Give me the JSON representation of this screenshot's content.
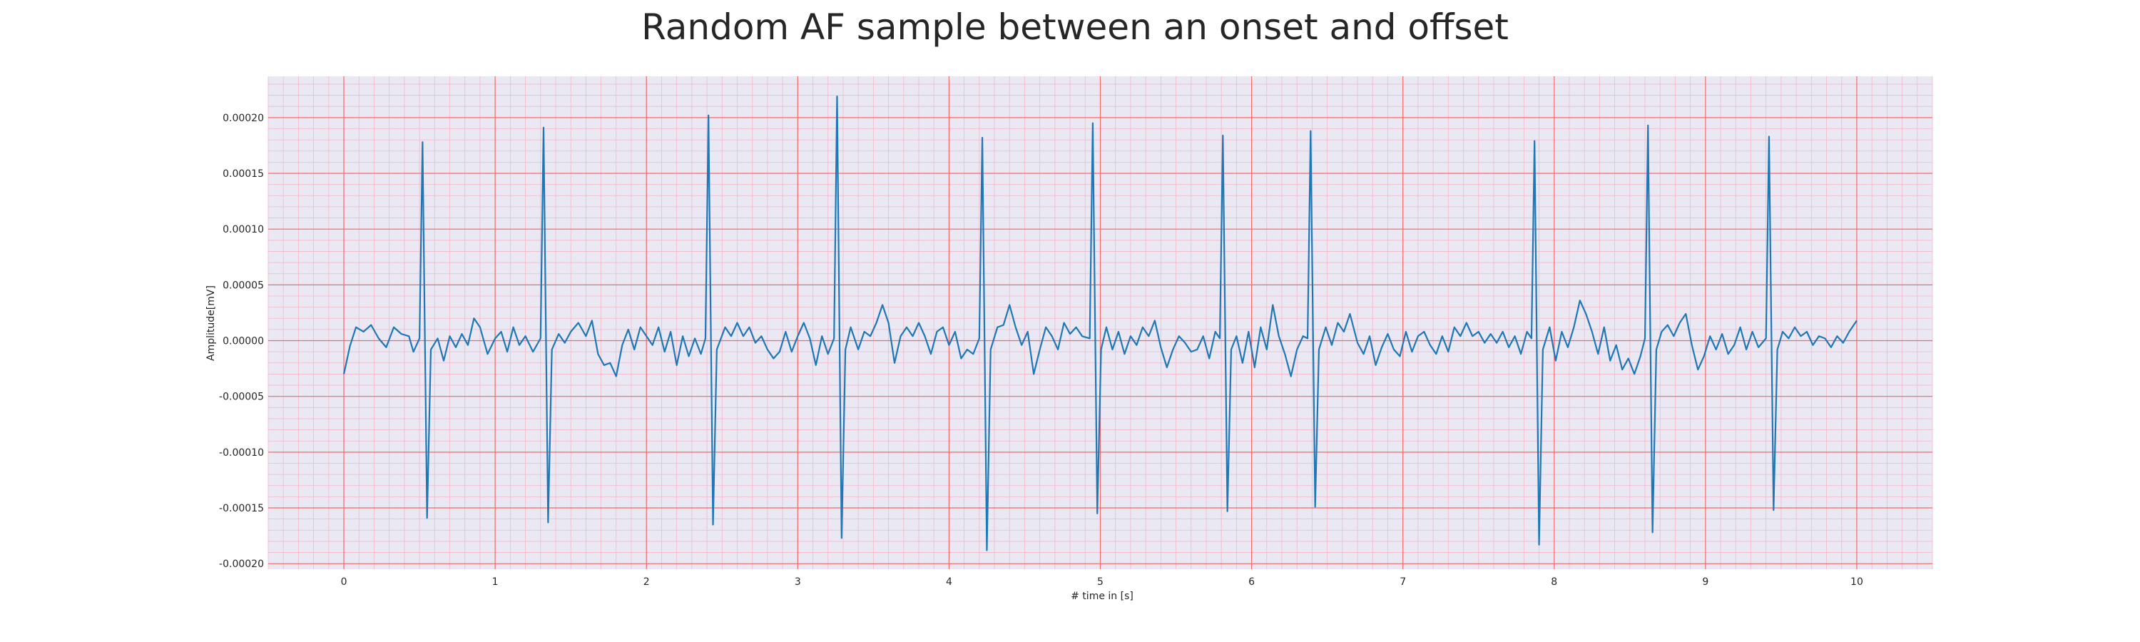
{
  "chart_data": {
    "type": "line",
    "title": "Random AF sample between an onset and offset",
    "xlabel": "# time in [s]",
    "ylabel": "Amplitude[mV]",
    "xlim": [
      -0.5,
      10.5
    ],
    "ylim": [
      -0.000205,
      0.000237
    ],
    "xticks": [
      0,
      1,
      2,
      3,
      4,
      5,
      6,
      7,
      8,
      9,
      10
    ],
    "xtick_labels": [
      "0",
      "1",
      "2",
      "3",
      "4",
      "5",
      "6",
      "7",
      "8",
      "9",
      "10"
    ],
    "yticks": [
      -0.0002,
      -0.00015,
      -0.0001,
      -5e-05,
      0,
      5e-05,
      0.0001,
      0.00015,
      0.0002
    ],
    "ytick_labels": [
      "-0.00020",
      "-0.00015",
      "-0.00010",
      "-0.00005",
      "0.00000",
      "0.00005",
      "0.00010",
      "0.00015",
      "0.00020"
    ],
    "grid": true,
    "colors": {
      "line": "#1f77b4",
      "plot_background": "#eae8f3",
      "major_grid": "#f26a6a",
      "minor_grid": "#f3b8c9"
    },
    "series": [
      {
        "beats": [
          {
            "t": 0.52,
            "peak": 0.000178,
            "trough": -0.000159
          },
          {
            "t": 1.32,
            "peak": 0.000191,
            "trough": -0.000163
          },
          {
            "t": 2.41,
            "peak": 0.000202,
            "trough": -0.000165
          },
          {
            "t": 3.26,
            "peak": 0.000219,
            "trough": -0.000177
          },
          {
            "t": 4.22,
            "peak": 0.000182,
            "trough": -0.000188
          },
          {
            "t": 4.95,
            "peak": 0.000195,
            "trough": -0.000155
          },
          {
            "t": 5.81,
            "peak": 0.000184,
            "trough": -0.000153
          },
          {
            "t": 6.39,
            "peak": 0.000188,
            "trough": -0.000149
          },
          {
            "t": 7.87,
            "peak": 0.000179,
            "trough": -0.000183
          },
          {
            "t": 8.62,
            "peak": 0.000193,
            "trough": -0.000172
          },
          {
            "t": 9.42,
            "peak": 0.000183,
            "trough": -0.000152
          }
        ],
        "baseline": [
          [
            0.0,
            -3e-05
          ],
          [
            0.04,
            -5e-06
          ],
          [
            0.08,
            1.2e-05
          ],
          [
            0.13,
            8e-06
          ],
          [
            0.18,
            1.4e-05
          ],
          [
            0.23,
            2e-06
          ],
          [
            0.28,
            -6e-06
          ],
          [
            0.33,
            1.2e-05
          ],
          [
            0.38,
            6e-06
          ],
          [
            0.43,
            4e-06
          ],
          [
            0.46,
            -1e-05
          ],
          [
            0.58,
            -1.2e-05
          ],
          [
            0.62,
            2e-06
          ],
          [
            0.66,
            -1.8e-05
          ],
          [
            0.7,
            4e-06
          ],
          [
            0.74,
            -6e-06
          ],
          [
            0.78,
            6e-06
          ],
          [
            0.82,
            -4e-06
          ],
          [
            0.86,
            2e-05
          ],
          [
            0.9,
            1.2e-05
          ],
          [
            0.95,
            -1.2e-05
          ],
          [
            1.0,
            2e-06
          ],
          [
            1.04,
            8e-06
          ],
          [
            1.08,
            -1e-05
          ],
          [
            1.12,
            1.2e-05
          ],
          [
            1.16,
            -4e-06
          ],
          [
            1.2,
            4e-06
          ],
          [
            1.25,
            -1e-05
          ],
          [
            1.38,
            2e-06
          ],
          [
            1.42,
            6e-06
          ],
          [
            1.46,
            -2e-06
          ],
          [
            1.5,
            8e-06
          ],
          [
            1.55,
            1.6e-05
          ],
          [
            1.6,
            4e-06
          ],
          [
            1.64,
            1.8e-05
          ],
          [
            1.68,
            -1.2e-05
          ],
          [
            1.72,
            -2.2e-05
          ],
          [
            1.76,
            -2e-05
          ],
          [
            1.8,
            -3.2e-05
          ],
          [
            1.84,
            -4e-06
          ],
          [
            1.88,
            1e-05
          ],
          [
            1.92,
            -8e-06
          ],
          [
            1.96,
            1.2e-05
          ],
          [
            2.0,
            4e-06
          ],
          [
            2.04,
            -4e-06
          ],
          [
            2.08,
            1.2e-05
          ],
          [
            2.12,
            -1e-05
          ],
          [
            2.16,
            8e-06
          ],
          [
            2.2,
            -2.2e-05
          ],
          [
            2.24,
            4e-06
          ],
          [
            2.28,
            -1.4e-05
          ],
          [
            2.32,
            2e-06
          ],
          [
            2.36,
            -1.2e-05
          ],
          [
            2.47,
            -2e-05
          ],
          [
            2.52,
            1.2e-05
          ],
          [
            2.56,
            4e-06
          ],
          [
            2.6,
            1.6e-05
          ],
          [
            2.64,
            4e-06
          ],
          [
            2.68,
            1.2e-05
          ],
          [
            2.72,
            -2e-06
          ],
          [
            2.76,
            4e-06
          ],
          [
            2.8,
            -8e-06
          ],
          [
            2.84,
            -1.6e-05
          ],
          [
            2.88,
            -1e-05
          ],
          [
            2.92,
            8e-06
          ],
          [
            2.96,
            -1e-05
          ],
          [
            3.0,
            4e-06
          ],
          [
            3.04,
            1.6e-05
          ],
          [
            3.08,
            2e-06
          ],
          [
            3.12,
            -2.2e-05
          ],
          [
            3.16,
            4e-06
          ],
          [
            3.2,
            -1.2e-05
          ],
          [
            3.31,
            -2e-05
          ],
          [
            3.35,
            1.2e-05
          ],
          [
            3.4,
            -8e-06
          ],
          [
            3.44,
            8e-06
          ],
          [
            3.48,
            4e-06
          ],
          [
            3.52,
            1.6e-05
          ],
          [
            3.56,
            3.2e-05
          ],
          [
            3.6,
            1.6e-05
          ],
          [
            3.64,
            -2e-05
          ],
          [
            3.68,
            4e-06
          ],
          [
            3.72,
            1.2e-05
          ],
          [
            3.76,
            4e-06
          ],
          [
            3.8,
            1.6e-05
          ],
          [
            3.84,
            4e-06
          ],
          [
            3.88,
            -1.2e-05
          ],
          [
            3.92,
            8e-06
          ],
          [
            3.96,
            1.2e-05
          ],
          [
            4.0,
            -4e-06
          ],
          [
            4.04,
            8e-06
          ],
          [
            4.08,
            -1.6e-05
          ],
          [
            4.12,
            -8e-06
          ],
          [
            4.16,
            -1.2e-05
          ],
          [
            4.28,
            -1.6e-05
          ],
          [
            4.32,
            1.2e-05
          ],
          [
            4.36,
            1.4e-05
          ],
          [
            4.4,
            3.2e-05
          ],
          [
            4.44,
            1.2e-05
          ],
          [
            4.48,
            -4e-06
          ],
          [
            4.52,
            8e-06
          ],
          [
            4.56,
            -3e-05
          ],
          [
            4.6,
            -8e-06
          ],
          [
            4.64,
            1.2e-05
          ],
          [
            4.68,
            4e-06
          ],
          [
            4.72,
            -8e-06
          ],
          [
            4.76,
            1.6e-05
          ],
          [
            4.8,
            6e-06
          ],
          [
            4.84,
            1.2e-05
          ],
          [
            4.88,
            4e-06
          ],
          [
            5.0,
            -8e-06
          ],
          [
            5.04,
            1.2e-05
          ],
          [
            5.08,
            -8e-06
          ],
          [
            5.12,
            8e-06
          ],
          [
            5.16,
            -1.2e-05
          ],
          [
            5.2,
            4e-06
          ],
          [
            5.24,
            -4e-06
          ],
          [
            5.28,
            1.2e-05
          ],
          [
            5.32,
            4e-06
          ],
          [
            5.36,
            1.8e-05
          ],
          [
            5.4,
            -6e-06
          ],
          [
            5.44,
            -2.4e-05
          ],
          [
            5.48,
            -8e-06
          ],
          [
            5.52,
            4e-06
          ],
          [
            5.56,
            -2e-06
          ],
          [
            5.6,
            -1e-05
          ],
          [
            5.64,
            -8e-06
          ],
          [
            5.68,
            4e-06
          ],
          [
            5.72,
            -1.6e-05
          ],
          [
            5.76,
            8e-06
          ],
          [
            5.86,
            2e-06
          ],
          [
            5.9,
            4e-06
          ],
          [
            5.94,
            -2e-05
          ],
          [
            5.98,
            8e-06
          ],
          [
            6.02,
            -2.4e-05
          ],
          [
            6.06,
            1.2e-05
          ],
          [
            6.1,
            -8e-06
          ],
          [
            6.14,
            3.2e-05
          ],
          [
            6.18,
            4e-06
          ],
          [
            6.22,
            -1.2e-05
          ],
          [
            6.26,
            -3.2e-05
          ],
          [
            6.3,
            -8e-06
          ],
          [
            6.34,
            4e-06
          ],
          [
            6.45,
            -8e-06
          ],
          [
            6.49,
            1.2e-05
          ],
          [
            6.53,
            -4e-06
          ],
          [
            6.57,
            1.6e-05
          ],
          [
            6.61,
            8e-06
          ],
          [
            6.65,
            2.4e-05
          ],
          [
            6.7,
            -2e-06
          ],
          [
            6.74,
            -1.2e-05
          ],
          [
            6.78,
            4e-06
          ],
          [
            6.82,
            -2.2e-05
          ],
          [
            6.86,
            -6e-06
          ],
          [
            6.9,
            6e-06
          ],
          [
            6.94,
            -8e-06
          ],
          [
            6.98,
            -1.4e-05
          ],
          [
            7.02,
            8e-06
          ],
          [
            7.06,
            -1e-05
          ],
          [
            7.1,
            4e-06
          ],
          [
            7.14,
            8e-06
          ],
          [
            7.18,
            -4e-06
          ],
          [
            7.22,
            -1.2e-05
          ],
          [
            7.26,
            4e-06
          ],
          [
            7.3,
            -1e-05
          ],
          [
            7.34,
            1.2e-05
          ],
          [
            7.38,
            4e-06
          ],
          [
            7.42,
            1.6e-05
          ],
          [
            7.46,
            4e-06
          ],
          [
            7.5,
            8e-06
          ],
          [
            7.54,
            -2e-06
          ],
          [
            7.58,
            6e-06
          ],
          [
            7.62,
            -2e-06
          ],
          [
            7.66,
            8e-06
          ],
          [
            7.7,
            -6e-06
          ],
          [
            7.74,
            4e-06
          ],
          [
            7.78,
            -1.2e-05
          ],
          [
            7.82,
            8e-06
          ],
          [
            7.93,
            -1.6e-05
          ],
          [
            7.97,
            1.2e-05
          ],
          [
            8.01,
            -1.8e-05
          ],
          [
            8.05,
            8e-06
          ],
          [
            8.09,
            -6e-06
          ],
          [
            8.13,
            1.2e-05
          ],
          [
            8.17,
            3.6e-05
          ],
          [
            8.21,
            2.4e-05
          ],
          [
            8.25,
            8e-06
          ],
          [
            8.29,
            -1.2e-05
          ],
          [
            8.33,
            1.2e-05
          ],
          [
            8.37,
            -1.8e-05
          ],
          [
            8.41,
            -4e-06
          ],
          [
            8.45,
            -2.6e-05
          ],
          [
            8.49,
            -1.6e-05
          ],
          [
            8.53,
            -3e-05
          ],
          [
            8.57,
            -1.4e-05
          ],
          [
            8.67,
            -1.8e-05
          ],
          [
            8.71,
            8e-06
          ],
          [
            8.75,
            1.4e-05
          ],
          [
            8.79,
            4e-06
          ],
          [
            8.83,
            1.6e-05
          ],
          [
            8.87,
            2.4e-05
          ],
          [
            8.91,
            -4e-06
          ],
          [
            8.95,
            -2.6e-05
          ],
          [
            8.99,
            -1.4e-05
          ],
          [
            9.03,
            4e-06
          ],
          [
            9.07,
            -8e-06
          ],
          [
            9.11,
            6e-06
          ],
          [
            9.15,
            -1.2e-05
          ],
          [
            9.19,
            -4e-06
          ],
          [
            9.23,
            1.2e-05
          ],
          [
            9.27,
            -8e-06
          ],
          [
            9.31,
            8e-06
          ],
          [
            9.35,
            -6e-06
          ],
          [
            9.47,
            -1.6e-05
          ],
          [
            9.51,
            8e-06
          ],
          [
            9.55,
            2e-06
          ],
          [
            9.59,
            1.2e-05
          ],
          [
            9.63,
            4e-06
          ],
          [
            9.67,
            8e-06
          ],
          [
            9.71,
            -4e-06
          ],
          [
            9.75,
            4e-06
          ],
          [
            9.79,
            2e-06
          ],
          [
            9.83,
            -6e-06
          ],
          [
            9.87,
            4e-06
          ],
          [
            9.91,
            -2e-06
          ],
          [
            9.95,
            8e-06
          ],
          [
            10.0,
            1.8e-05
          ]
        ]
      }
    ]
  }
}
